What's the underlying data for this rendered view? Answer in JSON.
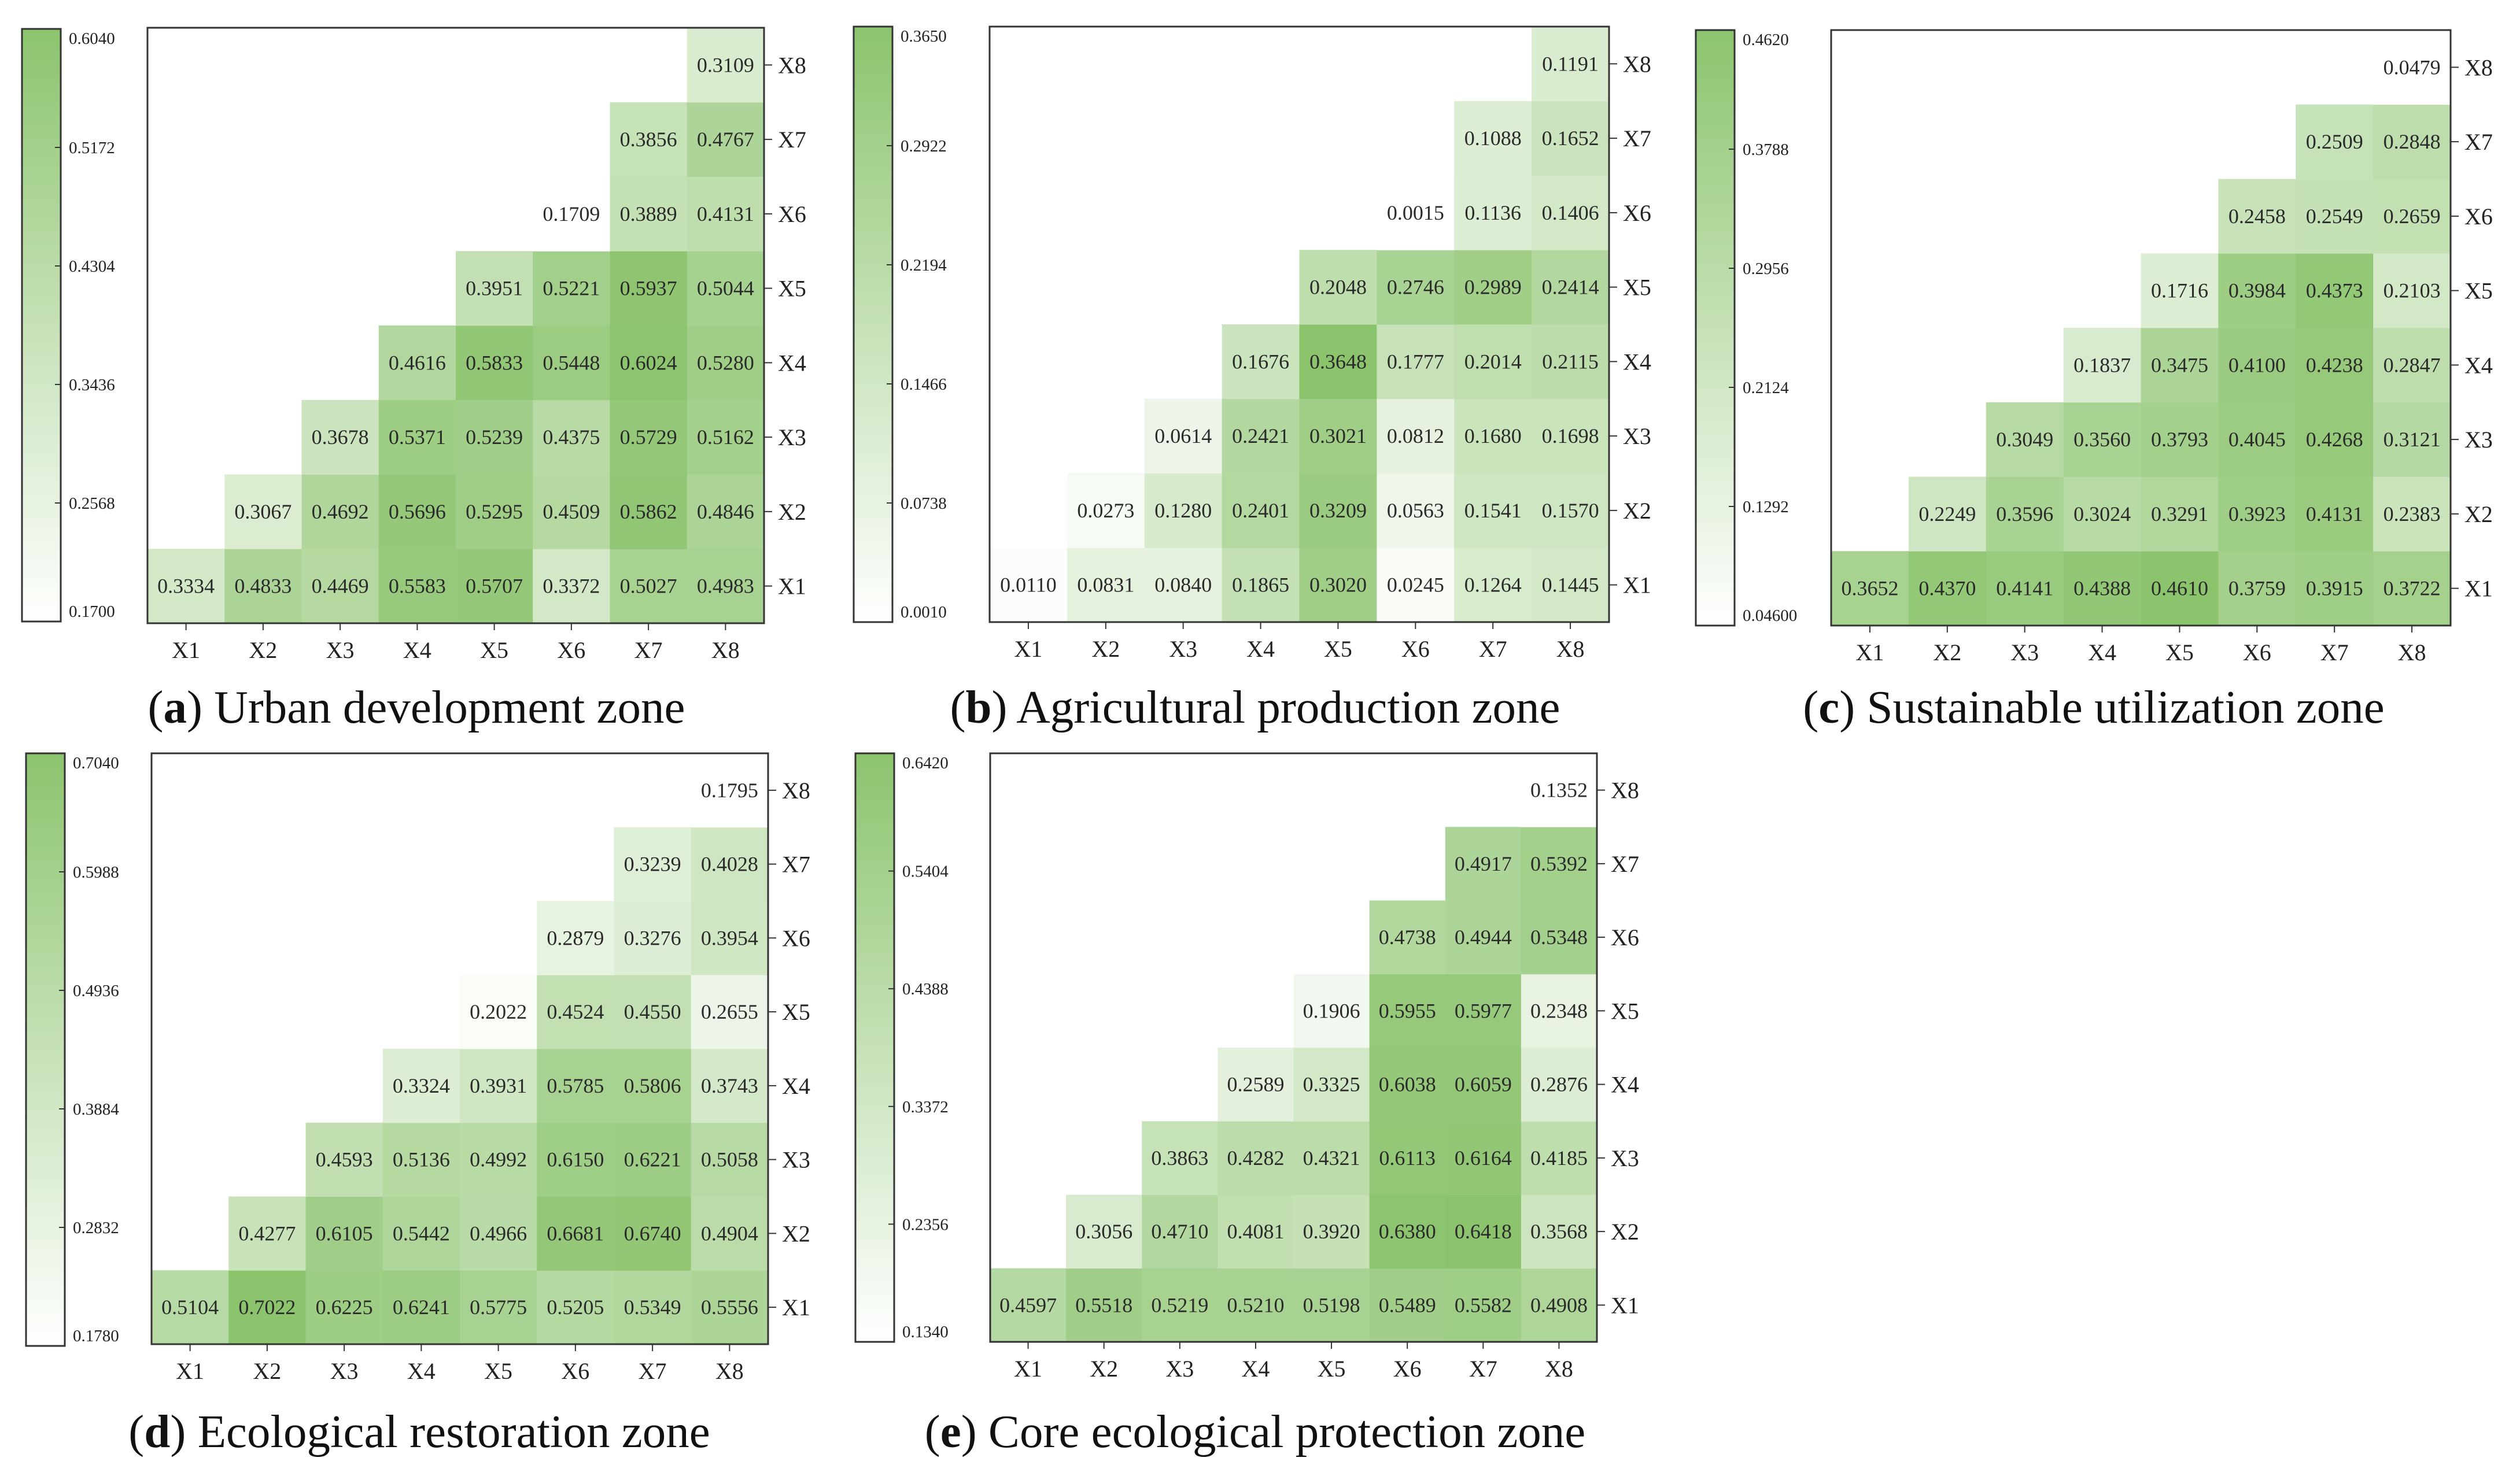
{
  "figure": {
    "colors": {
      "low": "#ffffff",
      "high": "#8cc46e",
      "border": "#333333"
    }
  },
  "chart_data": [
    {
      "type": "heatmap",
      "panel_letter": "a",
      "title": "Urban development zone",
      "x_labels": [
        "X1",
        "X2",
        "X3",
        "X4",
        "X5",
        "X6",
        "X7",
        "X8"
      ],
      "y_labels": [
        "X1",
        "X2",
        "X3",
        "X4",
        "X5",
        "X6",
        "X7",
        "X8"
      ],
      "colorbar": {
        "min": 0.17,
        "max": 0.604,
        "ticks": [
          "0.1700",
          "0.2568",
          "0.3436",
          "0.4304",
          "0.5172",
          "0.6040"
        ]
      },
      "cells": [
        {
          "x": "X1",
          "y": "X1",
          "value": "0.3334"
        },
        {
          "x": "X2",
          "y": "X1",
          "value": "0.4833"
        },
        {
          "x": "X3",
          "y": "X1",
          "value": "0.4469"
        },
        {
          "x": "X4",
          "y": "X1",
          "value": "0.5583"
        },
        {
          "x": "X5",
          "y": "X1",
          "value": "0.5707"
        },
        {
          "x": "X6",
          "y": "X1",
          "value": "0.3372"
        },
        {
          "x": "X7",
          "y": "X1",
          "value": "0.5027"
        },
        {
          "x": "X8",
          "y": "X1",
          "value": "0.4983"
        },
        {
          "x": "X2",
          "y": "X2",
          "value": "0.3067"
        },
        {
          "x": "X3",
          "y": "X2",
          "value": "0.4692"
        },
        {
          "x": "X4",
          "y": "X2",
          "value": "0.5696"
        },
        {
          "x": "X5",
          "y": "X2",
          "value": "0.5295"
        },
        {
          "x": "X6",
          "y": "X2",
          "value": "0.4509"
        },
        {
          "x": "X7",
          "y": "X2",
          "value": "0.5862"
        },
        {
          "x": "X8",
          "y": "X2",
          "value": "0.4846"
        },
        {
          "x": "X3",
          "y": "X3",
          "value": "0.3678"
        },
        {
          "x": "X4",
          "y": "X3",
          "value": "0.5371"
        },
        {
          "x": "X5",
          "y": "X3",
          "value": "0.5239"
        },
        {
          "x": "X6",
          "y": "X3",
          "value": "0.4375"
        },
        {
          "x": "X7",
          "y": "X3",
          "value": "0.5729"
        },
        {
          "x": "X8",
          "y": "X3",
          "value": "0.5162"
        },
        {
          "x": "X4",
          "y": "X4",
          "value": "0.4616"
        },
        {
          "x": "X5",
          "y": "X4",
          "value": "0.5833"
        },
        {
          "x": "X6",
          "y": "X4",
          "value": "0.5448"
        },
        {
          "x": "X7",
          "y": "X4",
          "value": "0.6024"
        },
        {
          "x": "X8",
          "y": "X4",
          "value": "0.5280"
        },
        {
          "x": "X5",
          "y": "X5",
          "value": "0.3951"
        },
        {
          "x": "X6",
          "y": "X5",
          "value": "0.5221"
        },
        {
          "x": "X7",
          "y": "X5",
          "value": "0.5937"
        },
        {
          "x": "X8",
          "y": "X5",
          "value": "0.5044"
        },
        {
          "x": "X6",
          "y": "X6",
          "value": "0.1709"
        },
        {
          "x": "X7",
          "y": "X6",
          "value": "0.3889"
        },
        {
          "x": "X8",
          "y": "X6",
          "value": "0.4131"
        },
        {
          "x": "X7",
          "y": "X7",
          "value": "0.3856"
        },
        {
          "x": "X8",
          "y": "X7",
          "value": "0.4767"
        },
        {
          "x": "X8",
          "y": "X8",
          "value": "0.3109"
        }
      ]
    },
    {
      "type": "heatmap",
      "panel_letter": "b",
      "title": "Agricultural production zone",
      "x_labels": [
        "X1",
        "X2",
        "X3",
        "X4",
        "X5",
        "X6",
        "X7",
        "X8"
      ],
      "y_labels": [
        "X1",
        "X2",
        "X3",
        "X4",
        "X5",
        "X6",
        "X7",
        "X8"
      ],
      "colorbar": {
        "min": 0.001,
        "max": 0.365,
        "ticks": [
          "0.0010",
          "0.0738",
          "0.1466",
          "0.2194",
          "0.2922",
          "0.3650"
        ]
      },
      "cells": [
        {
          "x": "X1",
          "y": "X1",
          "value": "0.0110"
        },
        {
          "x": "X2",
          "y": "X1",
          "value": "0.0831"
        },
        {
          "x": "X3",
          "y": "X1",
          "value": "0.0840"
        },
        {
          "x": "X4",
          "y": "X1",
          "value": "0.1865"
        },
        {
          "x": "X5",
          "y": "X1",
          "value": "0.3020"
        },
        {
          "x": "X6",
          "y": "X1",
          "value": "0.0245"
        },
        {
          "x": "X7",
          "y": "X1",
          "value": "0.1264"
        },
        {
          "x": "X8",
          "y": "X1",
          "value": "0.1445"
        },
        {
          "x": "X2",
          "y": "X2",
          "value": "0.0273"
        },
        {
          "x": "X3",
          "y": "X2",
          "value": "0.1280"
        },
        {
          "x": "X4",
          "y": "X2",
          "value": "0.2401"
        },
        {
          "x": "X5",
          "y": "X2",
          "value": "0.3209"
        },
        {
          "x": "X6",
          "y": "X2",
          "value": "0.0563"
        },
        {
          "x": "X7",
          "y": "X2",
          "value": "0.1541"
        },
        {
          "x": "X8",
          "y": "X2",
          "value": "0.1570"
        },
        {
          "x": "X3",
          "y": "X3",
          "value": "0.0614"
        },
        {
          "x": "X4",
          "y": "X3",
          "value": "0.2421"
        },
        {
          "x": "X5",
          "y": "X3",
          "value": "0.3021"
        },
        {
          "x": "X6",
          "y": "X3",
          "value": "0.0812"
        },
        {
          "x": "X7",
          "y": "X3",
          "value": "0.1680"
        },
        {
          "x": "X8",
          "y": "X3",
          "value": "0.1698"
        },
        {
          "x": "X4",
          "y": "X4",
          "value": "0.1676"
        },
        {
          "x": "X5",
          "y": "X4",
          "value": "0.3648"
        },
        {
          "x": "X6",
          "y": "X4",
          "value": "0.1777"
        },
        {
          "x": "X7",
          "y": "X4",
          "value": "0.2014"
        },
        {
          "x": "X8",
          "y": "X4",
          "value": "0.2115"
        },
        {
          "x": "X5",
          "y": "X5",
          "value": "0.2048"
        },
        {
          "x": "X6",
          "y": "X5",
          "value": "0.2746"
        },
        {
          "x": "X7",
          "y": "X5",
          "value": "0.2989"
        },
        {
          "x": "X8",
          "y": "X5",
          "value": "0.2414"
        },
        {
          "x": "X6",
          "y": "X6",
          "value": "0.0015"
        },
        {
          "x": "X7",
          "y": "X6",
          "value": "0.1136"
        },
        {
          "x": "X8",
          "y": "X6",
          "value": "0.1406"
        },
        {
          "x": "X7",
          "y": "X7",
          "value": "0.1088"
        },
        {
          "x": "X8",
          "y": "X7",
          "value": "0.1652"
        },
        {
          "x": "X8",
          "y": "X8",
          "value": "0.1191"
        }
      ]
    },
    {
      "type": "heatmap",
      "panel_letter": "c",
      "title": "Sustainable utilization zone",
      "x_labels": [
        "X1",
        "X2",
        "X3",
        "X4",
        "X5",
        "X6",
        "X7",
        "X8"
      ],
      "y_labels": [
        "X1",
        "X2",
        "X3",
        "X4",
        "X5",
        "X6",
        "X7",
        "X8"
      ],
      "colorbar": {
        "min": 0.046,
        "max": 0.462,
        "ticks": [
          "0.04600",
          "0.1292",
          "0.2124",
          "0.2956",
          "0.3788",
          "0.4620"
        ]
      },
      "cells": [
        {
          "x": "X1",
          "y": "X1",
          "value": "0.3652"
        },
        {
          "x": "X2",
          "y": "X1",
          "value": "0.4370"
        },
        {
          "x": "X3",
          "y": "X1",
          "value": "0.4141"
        },
        {
          "x": "X4",
          "y": "X1",
          "value": "0.4388"
        },
        {
          "x": "X5",
          "y": "X1",
          "value": "0.4610"
        },
        {
          "x": "X6",
          "y": "X1",
          "value": "0.3759"
        },
        {
          "x": "X7",
          "y": "X1",
          "value": "0.3915"
        },
        {
          "x": "X8",
          "y": "X1",
          "value": "0.3722"
        },
        {
          "x": "X2",
          "y": "X2",
          "value": "0.2249"
        },
        {
          "x": "X3",
          "y": "X2",
          "value": "0.3596"
        },
        {
          "x": "X4",
          "y": "X2",
          "value": "0.3024"
        },
        {
          "x": "X5",
          "y": "X2",
          "value": "0.3291"
        },
        {
          "x": "X6",
          "y": "X2",
          "value": "0.3923"
        },
        {
          "x": "X7",
          "y": "X2",
          "value": "0.4131"
        },
        {
          "x": "X8",
          "y": "X2",
          "value": "0.2383"
        },
        {
          "x": "X3",
          "y": "X3",
          "value": "0.3049"
        },
        {
          "x": "X4",
          "y": "X3",
          "value": "0.3560"
        },
        {
          "x": "X5",
          "y": "X3",
          "value": "0.3793"
        },
        {
          "x": "X6",
          "y": "X3",
          "value": "0.4045"
        },
        {
          "x": "X7",
          "y": "X3",
          "value": "0.4268"
        },
        {
          "x": "X8",
          "y": "X3",
          "value": "0.3121"
        },
        {
          "x": "X4",
          "y": "X4",
          "value": "0.1837"
        },
        {
          "x": "X5",
          "y": "X4",
          "value": "0.3475"
        },
        {
          "x": "X6",
          "y": "X4",
          "value": "0.4100"
        },
        {
          "x": "X7",
          "y": "X4",
          "value": "0.4238"
        },
        {
          "x": "X8",
          "y": "X4",
          "value": "0.2847"
        },
        {
          "x": "X5",
          "y": "X5",
          "value": "0.1716"
        },
        {
          "x": "X6",
          "y": "X5",
          "value": "0.3984"
        },
        {
          "x": "X7",
          "y": "X5",
          "value": "0.4373"
        },
        {
          "x": "X8",
          "y": "X5",
          "value": "0.2103"
        },
        {
          "x": "X6",
          "y": "X6",
          "value": "0.2458"
        },
        {
          "x": "X7",
          "y": "X6",
          "value": "0.2549"
        },
        {
          "x": "X8",
          "y": "X6",
          "value": "0.2659"
        },
        {
          "x": "X7",
          "y": "X7",
          "value": "0.2509"
        },
        {
          "x": "X8",
          "y": "X7",
          "value": "0.2848"
        },
        {
          "x": "X8",
          "y": "X8",
          "value": "0.0479"
        }
      ]
    },
    {
      "type": "heatmap",
      "panel_letter": "d",
      "title": "Ecological restoration zone",
      "x_labels": [
        "X1",
        "X2",
        "X3",
        "X4",
        "X5",
        "X6",
        "X7",
        "X8"
      ],
      "y_labels": [
        "X1",
        "X2",
        "X3",
        "X4",
        "X5",
        "X6",
        "X7",
        "X8"
      ],
      "colorbar": {
        "min": 0.178,
        "max": 0.704,
        "ticks": [
          "0.1780",
          "0.2832",
          "0.3884",
          "0.4936",
          "0.5988",
          "0.7040"
        ]
      },
      "cells": [
        {
          "x": "X1",
          "y": "X1",
          "value": "0.5104"
        },
        {
          "x": "X2",
          "y": "X1",
          "value": "0.7022"
        },
        {
          "x": "X3",
          "y": "X1",
          "value": "0.6225"
        },
        {
          "x": "X4",
          "y": "X1",
          "value": "0.6241"
        },
        {
          "x": "X5",
          "y": "X1",
          "value": "0.5775"
        },
        {
          "x": "X6",
          "y": "X1",
          "value": "0.5205"
        },
        {
          "x": "X7",
          "y": "X1",
          "value": "0.5349"
        },
        {
          "x": "X8",
          "y": "X1",
          "value": "0.5556"
        },
        {
          "x": "X2",
          "y": "X2",
          "value": "0.4277"
        },
        {
          "x": "X3",
          "y": "X2",
          "value": "0.6105"
        },
        {
          "x": "X4",
          "y": "X2",
          "value": "0.5442"
        },
        {
          "x": "X5",
          "y": "X2",
          "value": "0.4966"
        },
        {
          "x": "X6",
          "y": "X2",
          "value": "0.6681"
        },
        {
          "x": "X7",
          "y": "X2",
          "value": "0.6740"
        },
        {
          "x": "X8",
          "y": "X2",
          "value": "0.4904"
        },
        {
          "x": "X3",
          "y": "X3",
          "value": "0.4593"
        },
        {
          "x": "X4",
          "y": "X3",
          "value": "0.5136"
        },
        {
          "x": "X5",
          "y": "X3",
          "value": "0.4992"
        },
        {
          "x": "X6",
          "y": "X3",
          "value": "0.6150"
        },
        {
          "x": "X7",
          "y": "X3",
          "value": "0.6221"
        },
        {
          "x": "X8",
          "y": "X3",
          "value": "0.5058"
        },
        {
          "x": "X4",
          "y": "X4",
          "value": "0.3324"
        },
        {
          "x": "X5",
          "y": "X4",
          "value": "0.3931"
        },
        {
          "x": "X6",
          "y": "X4",
          "value": "0.5785"
        },
        {
          "x": "X7",
          "y": "X4",
          "value": "0.5806"
        },
        {
          "x": "X8",
          "y": "X4",
          "value": "0.3743"
        },
        {
          "x": "X5",
          "y": "X5",
          "value": "0.2022"
        },
        {
          "x": "X6",
          "y": "X5",
          "value": "0.4524"
        },
        {
          "x": "X7",
          "y": "X5",
          "value": "0.4550"
        },
        {
          "x": "X8",
          "y": "X5",
          "value": "0.2655"
        },
        {
          "x": "X6",
          "y": "X6",
          "value": "0.2879"
        },
        {
          "x": "X7",
          "y": "X6",
          "value": "0.3276"
        },
        {
          "x": "X8",
          "y": "X6",
          "value": "0.3954"
        },
        {
          "x": "X7",
          "y": "X7",
          "value": "0.3239"
        },
        {
          "x": "X8",
          "y": "X7",
          "value": "0.4028"
        },
        {
          "x": "X8",
          "y": "X8",
          "value": "0.1795"
        }
      ]
    },
    {
      "type": "heatmap",
      "panel_letter": "e",
      "title": "Core ecological protection zone",
      "x_labels": [
        "X1",
        "X2",
        "X3",
        "X4",
        "X5",
        "X6",
        "X7",
        "X8"
      ],
      "y_labels": [
        "X1",
        "X2",
        "X3",
        "X4",
        "X5",
        "X6",
        "X7",
        "X8"
      ],
      "colorbar": {
        "min": 0.134,
        "max": 0.642,
        "ticks": [
          "0.1340",
          "0.2356",
          "0.3372",
          "0.4388",
          "0.5404",
          "0.6420"
        ]
      },
      "cells": [
        {
          "x": "X1",
          "y": "X1",
          "value": "0.4597"
        },
        {
          "x": "X2",
          "y": "X1",
          "value": "0.5518"
        },
        {
          "x": "X3",
          "y": "X1",
          "value": "0.5219"
        },
        {
          "x": "X4",
          "y": "X1",
          "value": "0.5210"
        },
        {
          "x": "X5",
          "y": "X1",
          "value": "0.5198"
        },
        {
          "x": "X6",
          "y": "X1",
          "value": "0.5489"
        },
        {
          "x": "X7",
          "y": "X1",
          "value": "0.5582"
        },
        {
          "x": "X8",
          "y": "X1",
          "value": "0.4908"
        },
        {
          "x": "X2",
          "y": "X2",
          "value": "0.3056"
        },
        {
          "x": "X3",
          "y": "X2",
          "value": "0.4710"
        },
        {
          "x": "X4",
          "y": "X2",
          "value": "0.4081"
        },
        {
          "x": "X5",
          "y": "X2",
          "value": "0.3920"
        },
        {
          "x": "X6",
          "y": "X2",
          "value": "0.6380"
        },
        {
          "x": "X7",
          "y": "X2",
          "value": "0.6418"
        },
        {
          "x": "X8",
          "y": "X2",
          "value": "0.3568"
        },
        {
          "x": "X3",
          "y": "X3",
          "value": "0.3863"
        },
        {
          "x": "X4",
          "y": "X3",
          "value": "0.4282"
        },
        {
          "x": "X5",
          "y": "X3",
          "value": "0.4321"
        },
        {
          "x": "X6",
          "y": "X3",
          "value": "0.6113"
        },
        {
          "x": "X7",
          "y": "X3",
          "value": "0.6164"
        },
        {
          "x": "X8",
          "y": "X3",
          "value": "0.4185"
        },
        {
          "x": "X4",
          "y": "X4",
          "value": "0.2589"
        },
        {
          "x": "X5",
          "y": "X4",
          "value": "0.3325"
        },
        {
          "x": "X6",
          "y": "X4",
          "value": "0.6038"
        },
        {
          "x": "X7",
          "y": "X4",
          "value": "0.6059"
        },
        {
          "x": "X8",
          "y": "X4",
          "value": "0.2876"
        },
        {
          "x": "X5",
          "y": "X5",
          "value": "0.1906"
        },
        {
          "x": "X6",
          "y": "X5",
          "value": "0.5955"
        },
        {
          "x": "X7",
          "y": "X5",
          "value": "0.5977"
        },
        {
          "x": "X8",
          "y": "X5",
          "value": "0.2348"
        },
        {
          "x": "X6",
          "y": "X6",
          "value": "0.4738"
        },
        {
          "x": "X7",
          "y": "X6",
          "value": "0.4944"
        },
        {
          "x": "X8",
          "y": "X6",
          "value": "0.5348"
        },
        {
          "x": "X7",
          "y": "X7",
          "value": "0.4917"
        },
        {
          "x": "X8",
          "y": "X7",
          "value": "0.5392"
        },
        {
          "x": "X8",
          "y": "X8",
          "value": "0.1352"
        }
      ]
    }
  ]
}
